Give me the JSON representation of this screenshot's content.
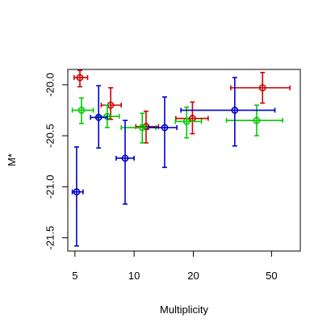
{
  "chart_data": {
    "type": "scatter",
    "title": "",
    "xlabel": "Multiplicity",
    "ylabel": "M*",
    "x_scale": "log",
    "y_inverted": true,
    "xlim": [
      4.6,
      70
    ],
    "ylim": [
      -19.85,
      -21.63
    ],
    "x_ticks": [
      5,
      10,
      20,
      50
    ],
    "y_ticks": [
      -20.0,
      -20.5,
      -21.0,
      -21.5
    ],
    "x_tick_labels": [
      "5",
      "10",
      "20",
      "50"
    ],
    "y_tick_labels": [
      "-20.0",
      "-20.5",
      "-21.0",
      "-21.5"
    ],
    "grid": false,
    "legend": "none",
    "series": [
      {
        "color": "#cc0000",
        "points": [
          {
            "x": 5.3,
            "x_low": 4.95,
            "x_high": 5.8,
            "y": -19.93,
            "y_low": -19.86,
            "y_high": -20.02
          },
          {
            "x": 7.6,
            "x_low": 6.8,
            "x_high": 8.6,
            "y": -20.2,
            "y_low": -20.03,
            "y_high": -20.34
          },
          {
            "x": 11.5,
            "x_low": 10.2,
            "x_high": 13.3,
            "y": -20.41,
            "y_low": -20.26,
            "y_high": -20.57
          },
          {
            "x": 19.8,
            "x_low": 16.3,
            "x_high": 23.8,
            "y": -20.33,
            "y_low": -20.17,
            "y_high": -20.48
          },
          {
            "x": 45.0,
            "x_low": 31.0,
            "x_high": 62.0,
            "y": -20.03,
            "y_low": -19.88,
            "y_high": -20.18
          }
        ]
      },
      {
        "color": "#00cc00",
        "points": [
          {
            "x": 5.4,
            "x_low": 4.85,
            "x_high": 6.2,
            "y": -20.25,
            "y_low": -20.13,
            "y_high": -20.38
          },
          {
            "x": 7.3,
            "x_low": 6.5,
            "x_high": 8.4,
            "y": -20.31,
            "y_low": -20.2,
            "y_high": -20.42
          },
          {
            "x": 11.0,
            "x_low": 8.6,
            "x_high": 12.9,
            "y": -20.42,
            "y_low": -20.28,
            "y_high": -20.57
          },
          {
            "x": 18.5,
            "x_low": 16.2,
            "x_high": 22.0,
            "y": -20.36,
            "y_low": -20.22,
            "y_high": -20.52
          },
          {
            "x": 42.0,
            "x_low": 29.5,
            "x_high": 57.0,
            "y": -20.35,
            "y_low": -20.2,
            "y_high": -20.5
          }
        ]
      },
      {
        "color": "#0000cc",
        "points": [
          {
            "x": 5.1,
            "x_low": 4.85,
            "x_high": 5.5,
            "y": -21.05,
            "y_low": -20.61,
            "y_high": -21.58
          },
          {
            "x": 6.6,
            "x_low": 6.0,
            "x_high": 7.3,
            "y": -20.32,
            "y_low": -20.01,
            "y_high": -20.62
          },
          {
            "x": 9.0,
            "x_low": 8.1,
            "x_high": 10.0,
            "y": -20.72,
            "y_low": -20.35,
            "y_high": -21.17
          },
          {
            "x": 14.3,
            "x_low": 11.8,
            "x_high": 16.5,
            "y": -20.42,
            "y_low": -20.12,
            "y_high": -20.81
          },
          {
            "x": 32.5,
            "x_low": 17.3,
            "x_high": 52.0,
            "y": -20.25,
            "y_low": -19.93,
            "y_high": -20.6
          }
        ]
      }
    ]
  }
}
